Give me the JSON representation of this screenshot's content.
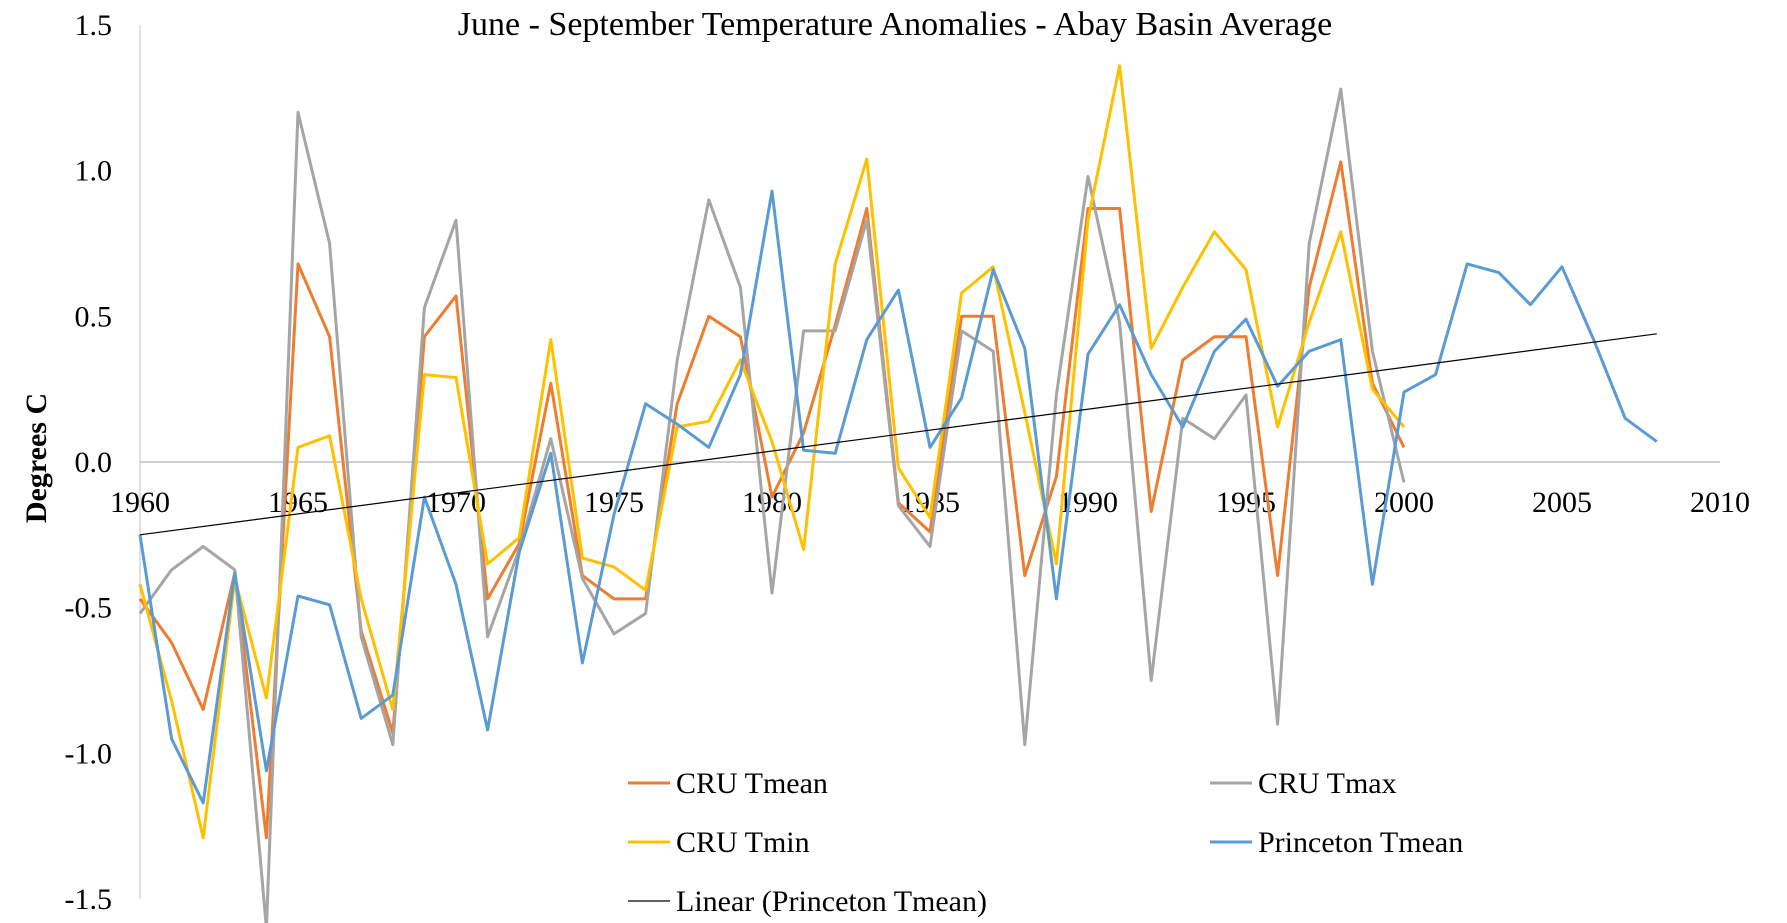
{
  "chart_data": {
    "type": "line",
    "title": "June - September Temperature Anomalies - Abay Basin Average",
    "ylabel": "Degrees C",
    "xlabel": "",
    "xlim": [
      1960,
      2010
    ],
    "ylim": [
      -1.5,
      1.5
    ],
    "x_ticks": [
      1960,
      1965,
      1970,
      1975,
      1980,
      1985,
      1990,
      1995,
      2000,
      2005,
      2010
    ],
    "y_ticks": [
      1.5,
      1.0,
      0.5,
      0.0,
      -0.5,
      -1.0,
      -1.5
    ],
    "y_tick_labels": [
      "1.5",
      "1.0",
      "0.5",
      "0.0",
      "-0.5",
      "-1.0",
      "-1.5"
    ],
    "grid": false,
    "legend_position": "bottom",
    "series": [
      {
        "name": "CRU Tmean",
        "color": "#ED7D31",
        "x": [
          1960,
          1961,
          1962,
          1963,
          1964,
          1965,
          1966,
          1967,
          1968,
          1969,
          1970,
          1971,
          1972,
          1973,
          1974,
          1975,
          1976,
          1977,
          1978,
          1979,
          1980,
          1981,
          1982,
          1983,
          1984,
          1985,
          1986,
          1987,
          1988,
          1989,
          1990,
          1991,
          1992,
          1993,
          1994,
          1995,
          1996,
          1997,
          1998,
          1999,
          2000
        ],
        "values": [
          -0.47,
          -0.62,
          -0.85,
          -0.38,
          -1.29,
          0.68,
          0.43,
          -0.58,
          -0.93,
          0.43,
          0.57,
          -0.47,
          -0.28,
          0.27,
          -0.39,
          -0.47,
          -0.47,
          0.2,
          0.5,
          0.43,
          -0.12,
          0.1,
          0.47,
          0.87,
          -0.14,
          -0.24,
          0.5,
          0.5,
          -0.39,
          -0.05,
          0.87,
          0.87,
          -0.17,
          0.35,
          0.43,
          0.43,
          -0.39,
          0.6,
          1.03,
          0.27,
          0.05
        ]
      },
      {
        "name": "CRU Tmax",
        "color": "#A5A5A5",
        "x": [
          1960,
          1961,
          1962,
          1963,
          1964,
          1965,
          1966,
          1967,
          1968,
          1969,
          1970,
          1971,
          1972,
          1973,
          1974,
          1975,
          1976,
          1977,
          1978,
          1979,
          1980,
          1981,
          1982,
          1983,
          1984,
          1985,
          1986,
          1987,
          1988,
          1989,
          1990,
          1991,
          1992,
          1993,
          1994,
          1995,
          1996,
          1997,
          1998,
          1999,
          2000
        ],
        "values": [
          -0.52,
          -0.37,
          -0.29,
          -0.37,
          -1.6,
          1.2,
          0.75,
          -0.6,
          -0.97,
          0.53,
          0.83,
          -0.6,
          -0.3,
          0.08,
          -0.4,
          -0.59,
          -0.52,
          0.35,
          0.9,
          0.6,
          -0.45,
          0.45,
          0.45,
          0.83,
          -0.15,
          -0.29,
          0.45,
          0.38,
          -0.97,
          0.23,
          0.98,
          0.48,
          -0.75,
          0.15,
          0.08,
          0.23,
          -0.9,
          0.75,
          1.28,
          0.38,
          -0.07
        ]
      },
      {
        "name": "CRU Tmin",
        "color": "#FFC000",
        "x": [
          1960,
          1961,
          1962,
          1963,
          1964,
          1965,
          1966,
          1967,
          1968,
          1969,
          1970,
          1971,
          1972,
          1973,
          1974,
          1975,
          1976,
          1977,
          1978,
          1979,
          1980,
          1981,
          1982,
          1983,
          1984,
          1985,
          1986,
          1987,
          1988,
          1989,
          1990,
          1991,
          1992,
          1993,
          1994,
          1995,
          1996,
          1997,
          1998,
          1999,
          2000
        ],
        "values": [
          -0.42,
          -0.82,
          -1.29,
          -0.4,
          -0.81,
          0.05,
          0.09,
          -0.47,
          -0.85,
          0.3,
          0.29,
          -0.35,
          -0.26,
          0.42,
          -0.33,
          -0.36,
          -0.44,
          0.12,
          0.14,
          0.35,
          0.07,
          -0.3,
          0.68,
          1.04,
          -0.02,
          -0.19,
          0.58,
          0.67,
          0.17,
          -0.35,
          0.83,
          1.36,
          0.39,
          0.6,
          0.79,
          0.66,
          0.12,
          0.48,
          0.79,
          0.25,
          0.12
        ]
      },
      {
        "name": "Princeton Tmean",
        "color": "#5B9BD5",
        "x": [
          1960,
          1961,
          1962,
          1963,
          1964,
          1965,
          1966,
          1967,
          1968,
          1969,
          1970,
          1971,
          1972,
          1973,
          1974,
          1975,
          1976,
          1977,
          1978,
          1979,
          1980,
          1981,
          1982,
          1983,
          1984,
          1985,
          1986,
          1987,
          1988,
          1989,
          1990,
          1991,
          1992,
          1993,
          1994,
          1995,
          1996,
          1997,
          1998,
          1999,
          2000,
          2001,
          2002,
          2003,
          2004,
          2005,
          2006,
          2007,
          2008
        ],
        "values": [
          -0.25,
          -0.95,
          -1.17,
          -0.38,
          -1.06,
          -0.46,
          -0.49,
          -0.88,
          -0.8,
          -0.12,
          -0.42,
          -0.92,
          -0.31,
          0.03,
          -0.69,
          -0.18,
          0.2,
          0.13,
          0.05,
          0.3,
          0.93,
          0.04,
          0.03,
          0.42,
          0.59,
          0.05,
          0.22,
          0.66,
          0.39,
          -0.47,
          0.37,
          0.54,
          0.3,
          0.12,
          0.38,
          0.49,
          0.26,
          0.38,
          0.42,
          -0.42,
          0.24,
          0.3,
          0.68,
          0.65,
          0.54,
          0.67,
          0.42,
          0.15,
          0.07
        ]
      }
    ],
    "trendline": {
      "name": "Linear (Princeton Tmean)",
      "color": "#000000",
      "x": [
        1960,
        2008
      ],
      "values": [
        -0.25,
        0.44
      ]
    }
  }
}
